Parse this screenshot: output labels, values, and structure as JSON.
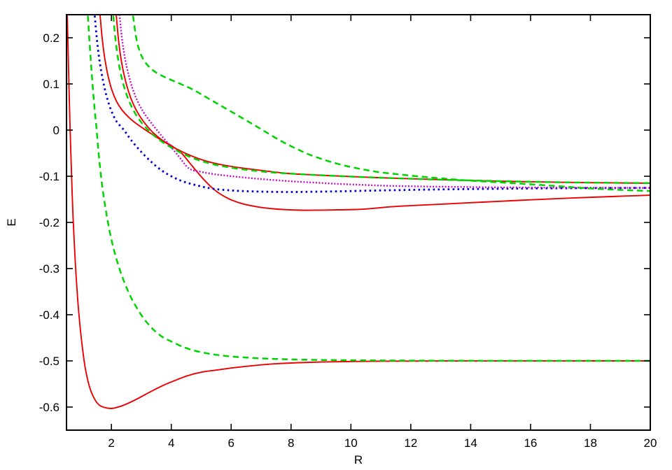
{
  "chart_data": {
    "type": "line",
    "title": "",
    "xlabel": "R",
    "ylabel": "E",
    "xlim": [
      0.5,
      20
    ],
    "ylim": [
      -0.65,
      0.25
    ],
    "grid": false,
    "legend": "none",
    "background_color": "#ffffff",
    "frame_color": "#000000",
    "xticks": {
      "values": [
        2,
        4,
        6,
        8,
        10,
        12,
        14,
        16,
        18,
        20
      ],
      "labels": [
        "2",
        "4",
        "6",
        "8",
        "10",
        "12",
        "14",
        "16",
        "18",
        "20"
      ]
    },
    "yticks": {
      "values": [
        0.2,
        0.1,
        0,
        -0.1,
        -0.2,
        -0.3,
        -0.4,
        -0.5,
        -0.6
      ],
      "labels": [
        "0.2",
        "0.1",
        "0",
        "-0.1",
        "-0.2",
        "-0.3",
        "-0.4",
        "-0.5",
        "-0.6"
      ]
    },
    "series": [
      {
        "id": "red-solid-deep-well",
        "color": "#ee0000",
        "style": "solid",
        "width": 1.9,
        "points": [
          [
            0.51,
            0.29
          ],
          [
            0.54,
            0.21
          ],
          [
            0.57,
            0.13
          ],
          [
            0.6,
            0.05
          ],
          [
            0.63,
            -0.02
          ],
          [
            0.67,
            -0.1
          ],
          [
            0.72,
            -0.19
          ],
          [
            0.78,
            -0.27
          ],
          [
            0.85,
            -0.345
          ],
          [
            0.93,
            -0.41
          ],
          [
            1.02,
            -0.465
          ],
          [
            1.12,
            -0.513
          ],
          [
            1.25,
            -0.552
          ],
          [
            1.4,
            -0.578
          ],
          [
            1.58,
            -0.595
          ],
          [
            1.78,
            -0.601
          ],
          [
            2.0,
            -0.603
          ],
          [
            2.25,
            -0.5995
          ],
          [
            2.55,
            -0.592
          ],
          [
            2.9,
            -0.581
          ],
          [
            3.3,
            -0.567
          ],
          [
            3.7,
            -0.554
          ],
          [
            4.1,
            -0.543
          ],
          [
            4.55,
            -0.532
          ],
          [
            5.0,
            -0.5245
          ],
          [
            5.5,
            -0.52
          ],
          [
            6.0,
            -0.5155
          ],
          [
            6.55,
            -0.5115
          ],
          [
            7.1,
            -0.508
          ],
          [
            7.7,
            -0.5055
          ],
          [
            8.3,
            -0.5038
          ],
          [
            9.0,
            -0.5025
          ],
          [
            9.8,
            -0.5015
          ],
          [
            10.8,
            -0.5008
          ],
          [
            11.9,
            -0.5004
          ],
          [
            13.0,
            -0.5002
          ],
          [
            14.5,
            -0.5001
          ],
          [
            16.0,
            -0.5001
          ],
          [
            18.0,
            -0.5
          ],
          [
            20.0,
            -0.5
          ]
        ]
      },
      {
        "id": "red-solid-flattening",
        "color": "#ee0000",
        "style": "solid",
        "width": 1.9,
        "points": [
          [
            1.56,
            0.29
          ],
          [
            1.62,
            0.25
          ],
          [
            1.69,
            0.2
          ],
          [
            1.78,
            0.155
          ],
          [
            1.89,
            0.117
          ],
          [
            2.02,
            0.086
          ],
          [
            2.17,
            0.0625
          ],
          [
            2.35,
            0.044
          ],
          [
            2.56,
            0.029
          ],
          [
            2.8,
            0.0155
          ],
          [
            3.1,
            0.002
          ],
          [
            3.45,
            -0.013
          ],
          [
            3.8,
            -0.027
          ],
          [
            4.12,
            -0.0388
          ],
          [
            4.5,
            -0.051
          ],
          [
            4.9,
            -0.0615
          ],
          [
            5.3,
            -0.0695
          ],
          [
            5.8,
            -0.0765
          ],
          [
            6.4,
            -0.0825
          ],
          [
            7.1,
            -0.0882
          ],
          [
            7.9,
            -0.094
          ],
          [
            8.8,
            -0.0972
          ],
          [
            9.8,
            -0.1002
          ],
          [
            10.9,
            -0.103
          ],
          [
            12.0,
            -0.1055
          ],
          [
            13.2,
            -0.1078
          ],
          [
            14.5,
            -0.11
          ],
          [
            16.0,
            -0.112
          ],
          [
            17.5,
            -0.1135
          ],
          [
            19.0,
            -0.1145
          ],
          [
            20.0,
            -0.115
          ]
        ]
      },
      {
        "id": "red-solid-shallow-well",
        "color": "#ee0000",
        "style": "solid",
        "width": 1.9,
        "points": [
          [
            2.1,
            0.29
          ],
          [
            2.16,
            0.25
          ],
          [
            2.23,
            0.2
          ],
          [
            2.32,
            0.155
          ],
          [
            2.44,
            0.115
          ],
          [
            2.58,
            0.082
          ],
          [
            2.74,
            0.055
          ],
          [
            2.93,
            0.032
          ],
          [
            3.15,
            0.012
          ],
          [
            3.4,
            -0.006
          ],
          [
            3.68,
            -0.021
          ],
          [
            3.95,
            -0.0315
          ],
          [
            4.12,
            -0.0388
          ],
          [
            4.35,
            -0.0505
          ],
          [
            4.62,
            -0.0715
          ],
          [
            4.9,
            -0.0935
          ],
          [
            5.15,
            -0.1115
          ],
          [
            5.41,
            -0.1278
          ],
          [
            5.7,
            -0.141
          ],
          [
            6.0,
            -0.1512
          ],
          [
            6.4,
            -0.16
          ],
          [
            6.9,
            -0.1665
          ],
          [
            7.4,
            -0.1705
          ],
          [
            7.9,
            -0.1725
          ],
          [
            8.4,
            -0.1736
          ],
          [
            9.0,
            -0.1734
          ],
          [
            9.6,
            -0.1727
          ],
          [
            10.4,
            -0.1713
          ],
          [
            11.36,
            -0.166
          ],
          [
            12.2,
            -0.163
          ],
          [
            13.2,
            -0.16
          ],
          [
            14.4,
            -0.156
          ],
          [
            15.6,
            -0.1523
          ],
          [
            17.0,
            -0.1482
          ],
          [
            18.4,
            -0.1447
          ],
          [
            19.2,
            -0.1428
          ],
          [
            20.0,
            -0.141
          ]
        ]
      },
      {
        "id": "blue-dotted",
        "color": "#0000cc",
        "style": "dotted",
        "width": 2.8,
        "points": [
          [
            1.38,
            0.29
          ],
          [
            1.44,
            0.25
          ],
          [
            1.51,
            0.2
          ],
          [
            1.6,
            0.152
          ],
          [
            1.71,
            0.11
          ],
          [
            1.84,
            0.073
          ],
          [
            1.99,
            0.043
          ],
          [
            2.17,
            0.019
          ],
          [
            2.42,
            0.0
          ],
          [
            2.65,
            -0.021
          ],
          [
            2.95,
            -0.044
          ],
          [
            3.3,
            -0.067
          ],
          [
            3.65,
            -0.086
          ],
          [
            4.0,
            -0.1
          ],
          [
            4.4,
            -0.1115
          ],
          [
            4.9,
            -0.1205
          ],
          [
            5.41,
            -0.1272
          ],
          [
            6.0,
            -0.1307
          ],
          [
            6.6,
            -0.1326
          ],
          [
            7.2,
            -0.1336
          ],
          [
            7.9,
            -0.1341
          ],
          [
            8.6,
            -0.1337
          ],
          [
            9.4,
            -0.1329
          ],
          [
            10.2,
            -0.1318
          ],
          [
            11.2,
            -0.1305
          ],
          [
            12.2,
            -0.1293
          ],
          [
            13.4,
            -0.1282
          ],
          [
            14.7,
            -0.1272
          ],
          [
            16.0,
            -0.1264
          ],
          [
            17.5,
            -0.1258
          ],
          [
            19.0,
            -0.1254
          ],
          [
            20.0,
            -0.1252
          ]
        ]
      },
      {
        "id": "magenta-dotted",
        "color": "#cc00cc",
        "style": "fine-dotted",
        "width": 2.4,
        "points": [
          [
            2.2,
            0.29
          ],
          [
            2.27,
            0.25
          ],
          [
            2.35,
            0.2
          ],
          [
            2.45,
            0.157
          ],
          [
            2.58,
            0.118
          ],
          [
            2.73,
            0.0855
          ],
          [
            2.9,
            0.059
          ],
          [
            3.1,
            0.036
          ],
          [
            3.35,
            0.014
          ],
          [
            3.62,
            -0.008
          ],
          [
            3.92,
            -0.031
          ],
          [
            4.25,
            -0.057
          ],
          [
            4.59,
            -0.083
          ],
          [
            5.0,
            -0.0905
          ],
          [
            5.5,
            -0.096
          ],
          [
            6.0,
            -0.0998
          ],
          [
            6.9,
            -0.1055
          ],
          [
            7.9,
            -0.1105
          ],
          [
            8.56,
            -0.113
          ],
          [
            9.5,
            -0.1163
          ],
          [
            10.5,
            -0.119
          ],
          [
            11.36,
            -0.1209
          ],
          [
            12.5,
            -0.1222
          ],
          [
            13.2,
            -0.1228
          ],
          [
            14.5,
            -0.1238
          ],
          [
            16.0,
            -0.1244
          ],
          [
            17.5,
            -0.1248
          ],
          [
            19.0,
            -0.1251
          ],
          [
            20.0,
            -0.1253
          ]
        ]
      },
      {
        "id": "green-dashed-repulsive",
        "color": "#00d400",
        "style": "dashed",
        "width": 2.5,
        "points": [
          [
            1.16,
            0.29
          ],
          [
            1.21,
            0.25
          ],
          [
            1.27,
            0.19
          ],
          [
            1.34,
            0.125
          ],
          [
            1.42,
            0.06
          ],
          [
            1.5,
            0.005
          ],
          [
            1.58,
            -0.055
          ],
          [
            1.68,
            -0.115
          ],
          [
            1.8,
            -0.168
          ],
          [
            1.95,
            -0.222
          ],
          [
            2.12,
            -0.268
          ],
          [
            2.32,
            -0.31
          ],
          [
            2.55,
            -0.348
          ],
          [
            2.8,
            -0.38
          ],
          [
            3.1,
            -0.41
          ],
          [
            3.4,
            -0.432
          ],
          [
            3.7,
            -0.448
          ],
          [
            4.0,
            -0.458
          ],
          [
            4.35,
            -0.4685
          ],
          [
            4.7,
            -0.4765
          ],
          [
            5.1,
            -0.4825
          ],
          [
            5.5,
            -0.4868
          ],
          [
            6.0,
            -0.4905
          ],
          [
            6.5,
            -0.4928
          ],
          [
            7.0,
            -0.4946
          ],
          [
            7.5,
            -0.4958
          ],
          [
            8.0,
            -0.4968
          ],
          [
            8.6,
            -0.4976
          ],
          [
            9.3,
            -0.4982
          ],
          [
            10.0,
            -0.4987
          ],
          [
            11.0,
            -0.4991
          ],
          [
            12.0,
            -0.4994
          ],
          [
            13.5,
            -0.4996
          ],
          [
            15.0,
            -0.4998
          ],
          [
            17.0,
            -0.4999
          ],
          [
            20.0,
            -0.4999
          ]
        ]
      },
      {
        "id": "green-dashed-upper-a",
        "color": "#00d400",
        "style": "dashed",
        "width": 2.5,
        "points": [
          [
            2.0,
            0.29
          ],
          [
            2.06,
            0.25
          ],
          [
            2.13,
            0.2
          ],
          [
            2.22,
            0.155
          ],
          [
            2.33,
            0.117
          ],
          [
            2.47,
            0.084
          ],
          [
            2.63,
            0.057
          ],
          [
            2.82,
            0.0335
          ],
          [
            3.04,
            0.0135
          ],
          [
            3.3,
            -0.0045
          ],
          [
            3.6,
            -0.021
          ],
          [
            3.95,
            -0.036
          ],
          [
            4.35,
            -0.05
          ],
          [
            4.8,
            -0.0625
          ],
          [
            5.3,
            -0.0725
          ],
          [
            5.9,
            -0.0805
          ],
          [
            6.6,
            -0.0868
          ],
          [
            7.4,
            -0.0918
          ],
          [
            8.3,
            -0.0955
          ],
          [
            9.3,
            -0.0988
          ],
          [
            10.4,
            -0.1018
          ],
          [
            11.6,
            -0.1046
          ],
          [
            12.9,
            -0.1072
          ],
          [
            14.2,
            -0.1094
          ],
          [
            15.6,
            -0.1114
          ],
          [
            17.0,
            -0.113
          ],
          [
            18.5,
            -0.1141
          ],
          [
            20.0,
            -0.1148
          ]
        ]
      },
      {
        "id": "green-dashed-upper-b",
        "color": "#00d400",
        "style": "dashed",
        "width": 2.5,
        "points": [
          [
            2.66,
            0.29
          ],
          [
            2.72,
            0.25
          ],
          [
            2.84,
            0.196
          ],
          [
            2.99,
            0.163
          ],
          [
            3.19,
            0.142
          ],
          [
            3.44,
            0.127
          ],
          [
            3.74,
            0.116
          ],
          [
            4.24,
            0.102
          ],
          [
            4.7,
            0.0885
          ],
          [
            5.2,
            0.07
          ],
          [
            5.76,
            0.049
          ],
          [
            6.4,
            0.025
          ],
          [
            7.0,
            0.002
          ],
          [
            7.62,
            -0.022
          ],
          [
            8.2,
            -0.041
          ],
          [
            8.79,
            -0.0575
          ],
          [
            9.7,
            -0.0755
          ],
          [
            10.73,
            -0.089
          ],
          [
            11.4,
            -0.0945
          ],
          [
            12.13,
            -0.0996
          ],
          [
            13.0,
            -0.1046
          ],
          [
            14.0,
            -0.1096
          ],
          [
            15.0,
            -0.1134
          ],
          [
            16.0,
            -0.1175
          ],
          [
            17.0,
            -0.1218
          ],
          [
            18.0,
            -0.1264
          ],
          [
            19.0,
            -0.1295
          ],
          [
            20.0,
            -0.132
          ]
        ]
      }
    ]
  }
}
